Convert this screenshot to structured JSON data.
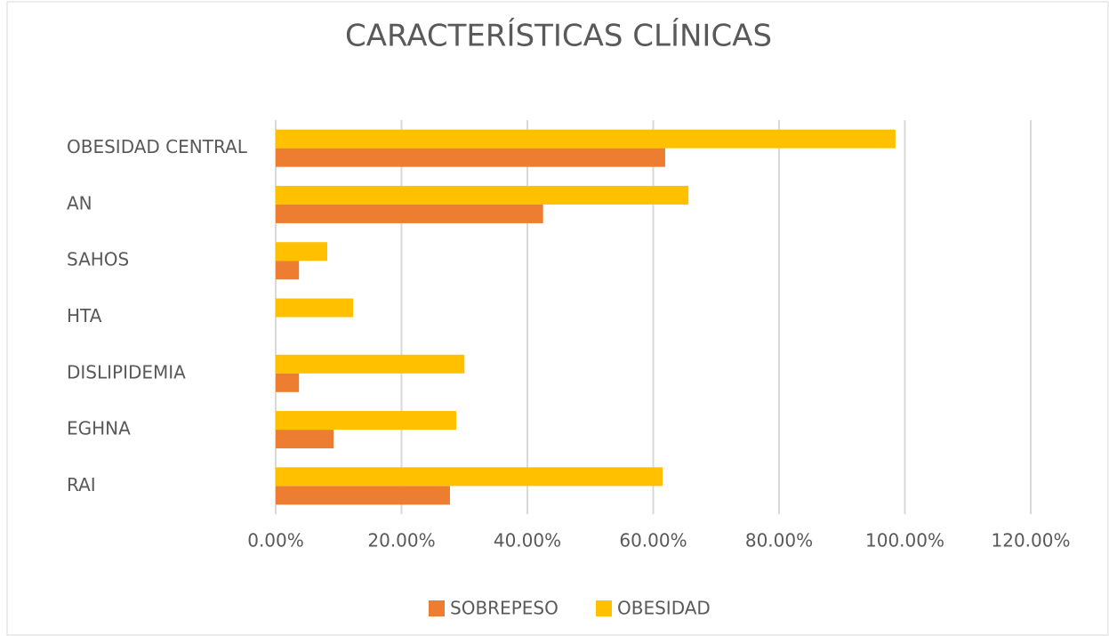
{
  "chart_data": {
    "type": "hbar",
    "title": "CARACTERÍSTICAS CLÍNICAS",
    "categories": [
      "OBESIDAD CENTRAL",
      "AN",
      "SAHOS",
      "HTA",
      "DISLIPIDEMIA",
      "EGHNA",
      "RAI"
    ],
    "series": [
      {
        "name": "SOBREPESO",
        "color": "#ED7D31",
        "values": [
          61.9,
          42.5,
          3.7,
          0,
          3.7,
          9.2,
          27.7
        ]
      },
      {
        "name": "OBESIDAD",
        "color": "#FFC000",
        "values": [
          98.5,
          65.6,
          8.2,
          12.3,
          30.0,
          28.7,
          61.5
        ]
      }
    ],
    "xlim": [
      0,
      120
    ],
    "xticks": [
      {
        "value": 0,
        "label": "0.00%"
      },
      {
        "value": 20,
        "label": "20.00%"
      },
      {
        "value": 40,
        "label": "40.00%"
      },
      {
        "value": 60,
        "label": "60.00%"
      },
      {
        "value": 80,
        "label": "80.00%"
      },
      {
        "value": 100,
        "label": "100.00%"
      },
      {
        "value": 120,
        "label": "120.00%"
      }
    ],
    "grid": true,
    "legend": "bottom"
  }
}
